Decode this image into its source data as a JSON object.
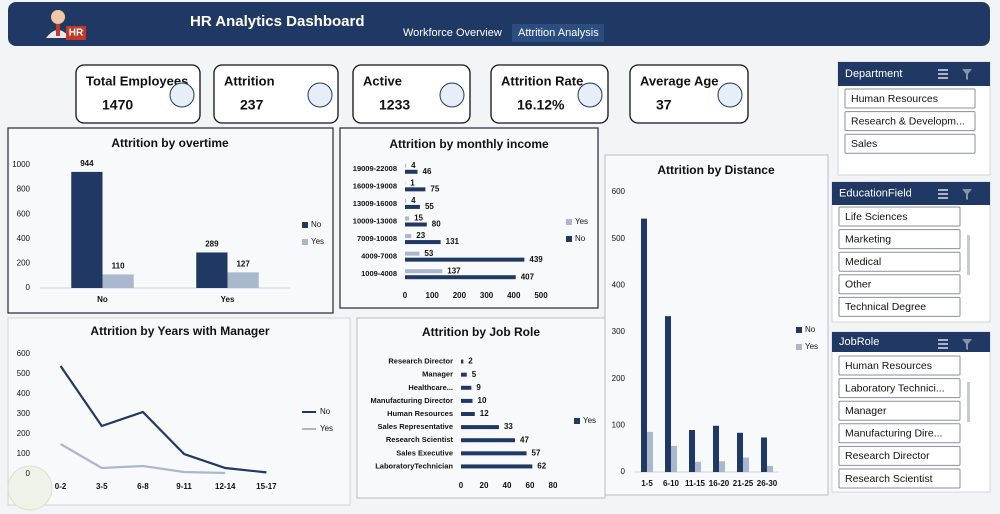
{
  "header": {
    "logo": "HR",
    "title": "HR Analytics Dashboard",
    "tabs": [
      "Workforce Overview",
      "Attrition Analysis"
    ]
  },
  "kpis": [
    {
      "label": "Total Employees",
      "value": 1470
    },
    {
      "label": "Attrition",
      "value": 237
    },
    {
      "label": "Active",
      "value": 1233
    },
    {
      "label": "Attrition Rate",
      "value": "16.12%"
    },
    {
      "label": "Average Age",
      "value": 37
    }
  ],
  "slicers": [
    {
      "title": "Department",
      "items": [
        "Human Resources",
        "Research & Developm...",
        "Sales"
      ]
    },
    {
      "title": "EducationField",
      "items": [
        "Life Sciences",
        "Marketing",
        "Medical",
        "Other",
        "Technical Degree"
      ]
    },
    {
      "title": "JobRole",
      "items": [
        "Human Resources",
        "Laboratory Technici...",
        "Manager",
        "Manufacturing Dire...",
        "Research Director",
        "Research Scientist"
      ]
    }
  ],
  "chart_data": [
    {
      "type": "bar",
      "orientation": "vertical",
      "title": "Attrition by overtime",
      "categories": [
        "No",
        "Yes"
      ],
      "series": [
        {
          "name": "No",
          "color": "#1f3864",
          "values": [
            944,
            289
          ]
        },
        {
          "name": "Yes",
          "color": "#a9b8cc",
          "values": [
            110,
            127
          ]
        }
      ],
      "ylim": [
        0,
        1000
      ],
      "yticks": [
        0,
        200,
        400,
        600,
        800,
        1000
      ],
      "data_labels": true,
      "legend": "right"
    },
    {
      "type": "bar",
      "orientation": "horizontal",
      "title": "Attrition by monthly income",
      "categories": [
        "19009-22008",
        "16009-19008",
        "13009-16008",
        "10009-13008",
        "7009-10008",
        "4009-7008",
        "1009-4008"
      ],
      "series": [
        {
          "name": "Yes",
          "color": "#a9b8cc",
          "values": [
            4,
            1,
            4,
            15,
            23,
            53,
            137
          ]
        },
        {
          "name": "No",
          "color": "#1f3864",
          "values": [
            46,
            75,
            55,
            80,
            131,
            439,
            407
          ]
        }
      ],
      "xlim": [
        0,
        500
      ],
      "xticks": [
        0,
        100,
        200,
        300,
        400,
        500
      ],
      "data_labels": true,
      "legend": "right"
    },
    {
      "type": "bar",
      "orientation": "vertical",
      "title": "Attrition by Distance",
      "categories": [
        "1-5",
        "6-10",
        "11-15",
        "16-20",
        "21-25",
        "26-30"
      ],
      "series": [
        {
          "name": "No",
          "color": "#1f3864",
          "values": [
            543,
            334,
            90,
            99,
            84,
            74
          ]
        },
        {
          "name": "Yes",
          "color": "#a9b8cc",
          "values": [
            86,
            56,
            22,
            23,
            31,
            13
          ]
        }
      ],
      "ylim": [
        0,
        600
      ],
      "yticks": [
        0,
        100,
        200,
        300,
        400,
        500,
        600
      ],
      "data_labels": false,
      "legend": "right"
    },
    {
      "type": "line",
      "title": "Attrition by Years with Manager",
      "categories": [
        "0-2",
        "3-5",
        "6-8",
        "9-11",
        "12-14",
        "15-17"
      ],
      "series": [
        {
          "name": "No",
          "color": "#1f3864",
          "values": [
            540,
            240,
            310,
            100,
            30,
            8
          ]
        },
        {
          "name": "Yes",
          "color": "#a9b8cc",
          "values": [
            150,
            30,
            40,
            10,
            5,
            null
          ]
        }
      ],
      "ylim": [
        0,
        600
      ],
      "yticks": [
        0,
        100,
        200,
        300,
        400,
        500,
        600
      ],
      "legend": "right"
    },
    {
      "type": "bar",
      "orientation": "horizontal",
      "title": "Attrition by Job Role",
      "categories": [
        "Research Director",
        "Manager",
        "Healthcare...",
        "Manufacturing Director",
        "Human Resources",
        "Sales Representative",
        "Research Scientist",
        "Sales Executive",
        "LaboratoryTechnician"
      ],
      "series": [
        {
          "name": "Yes",
          "color": "#1f3864",
          "values": [
            2,
            5,
            9,
            10,
            12,
            33,
            47,
            57,
            62
          ]
        }
      ],
      "xlim": [
        0,
        80
      ],
      "xticks": [
        0,
        20,
        40,
        60,
        80
      ],
      "data_labels": true,
      "legend": "right"
    }
  ]
}
